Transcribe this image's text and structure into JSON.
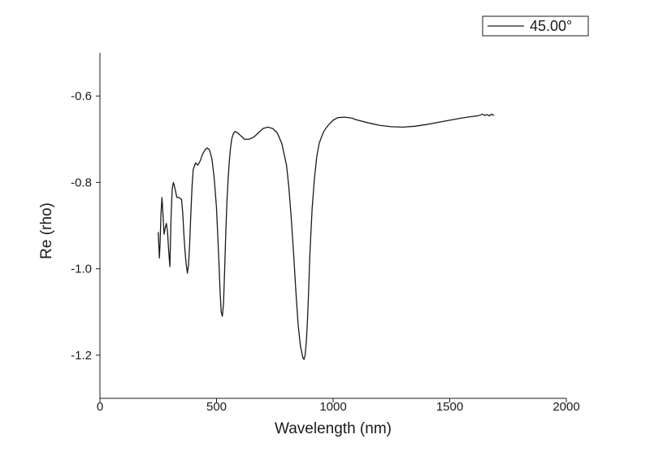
{
  "chart_data": {
    "type": "line",
    "xlabel": "Wavelength (nm)",
    "ylabel": "Re (rho)",
    "xlim": [
      0,
      2000
    ],
    "ylim": [
      -1.3,
      -0.5
    ],
    "x_ticks": [
      0,
      500,
      1000,
      1500,
      2000
    ],
    "x_tick_labels": [
      "0",
      "500",
      "1000",
      "1500",
      "2000"
    ],
    "y_ticks": [
      -1.2,
      -1.0,
      -0.8,
      -0.6
    ],
    "y_tick_labels": [
      "-1.2",
      "-1.0",
      "-0.8",
      "-0.6"
    ],
    "grid": false,
    "legend_position": "top-right",
    "line_color": "#1a1a1a",
    "series": [
      {
        "name": "45.00°",
        "x": [
          250,
          255,
          258,
          262,
          266,
          270,
          275,
          280,
          285,
          290,
          295,
          300,
          305,
          310,
          315,
          320,
          330,
          340,
          350,
          355,
          360,
          365,
          370,
          375,
          380,
          385,
          390,
          395,
          400,
          410,
          420,
          430,
          440,
          450,
          460,
          470,
          480,
          490,
          500,
          505,
          510,
          515,
          520,
          525,
          530,
          535,
          540,
          545,
          550,
          555,
          560,
          565,
          570,
          575,
          580,
          590,
          600,
          620,
          640,
          660,
          680,
          700,
          720,
          740,
          760,
          780,
          800,
          810,
          820,
          830,
          840,
          850,
          860,
          870,
          875,
          880,
          885,
          890,
          895,
          900,
          910,
          920,
          930,
          940,
          950,
          960,
          970,
          980,
          1000,
          1020,
          1050,
          1080,
          1100,
          1150,
          1200,
          1250,
          1300,
          1350,
          1400,
          1450,
          1500,
          1550,
          1600,
          1620,
          1640,
          1650,
          1660,
          1670,
          1680,
          1690
        ],
        "y": [
          -0.915,
          -0.975,
          -0.94,
          -0.87,
          -0.835,
          -0.87,
          -0.92,
          -0.905,
          -0.895,
          -0.915,
          -0.96,
          -0.995,
          -0.88,
          -0.815,
          -0.8,
          -0.81,
          -0.835,
          -0.835,
          -0.84,
          -0.87,
          -0.92,
          -0.96,
          -0.99,
          -1.01,
          -0.99,
          -0.94,
          -0.87,
          -0.81,
          -0.77,
          -0.755,
          -0.76,
          -0.75,
          -0.735,
          -0.725,
          -0.72,
          -0.725,
          -0.745,
          -0.79,
          -0.86,
          -0.92,
          -0.98,
          -1.05,
          -1.1,
          -1.11,
          -1.08,
          -1.0,
          -0.91,
          -0.84,
          -0.79,
          -0.75,
          -0.72,
          -0.7,
          -0.69,
          -0.685,
          -0.682,
          -0.685,
          -0.69,
          -0.7,
          -0.7,
          -0.695,
          -0.685,
          -0.675,
          -0.672,
          -0.675,
          -0.685,
          -0.71,
          -0.76,
          -0.81,
          -0.88,
          -0.96,
          -1.05,
          -1.13,
          -1.18,
          -1.205,
          -1.21,
          -1.2,
          -1.17,
          -1.12,
          -1.05,
          -0.97,
          -0.86,
          -0.79,
          -0.74,
          -0.71,
          -0.695,
          -0.682,
          -0.674,
          -0.667,
          -0.656,
          -0.65,
          -0.649,
          -0.651,
          -0.655,
          -0.662,
          -0.668,
          -0.671,
          -0.672,
          -0.67,
          -0.666,
          -0.661,
          -0.656,
          -0.651,
          -0.647,
          -0.646,
          -0.642,
          -0.645,
          -0.643,
          -0.646,
          -0.642,
          -0.645
        ]
      }
    ]
  }
}
